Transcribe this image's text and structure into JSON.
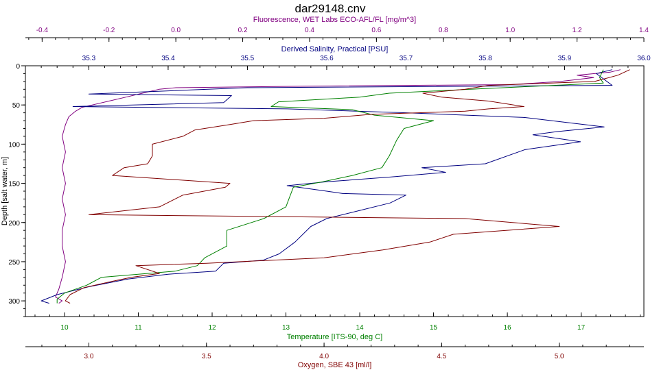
{
  "window_title": "dar29148.cnv",
  "chart_data": {
    "type": "line",
    "title": "dar29148.cnv",
    "y_axis": {
      "label": "Depth [salt water, m]",
      "range": [
        0,
        320
      ],
      "ticks": [
        0,
        50,
        100,
        150,
        200,
        250,
        300
      ],
      "inverted": true
    },
    "x_axes": [
      {
        "id": "fluorescence",
        "label": "Fluorescence, WET Labs ECO-AFL/FL [mg/m^3]",
        "position": "top-1",
        "range": [
          -0.45,
          1.4
        ],
        "ticks": [
          -0.4,
          -0.2,
          0.0,
          0.2,
          0.4,
          0.6,
          0.8,
          1.0,
          1.2,
          1.4
        ],
        "tick_labels": [
          "-0.4",
          "-0.2",
          "0.0",
          "0.2",
          "0.4",
          "0.6",
          "0.8",
          "1.0",
          "1.2",
          "1.4"
        ],
        "color": "#800080"
      },
      {
        "id": "salinity",
        "label": "Derived Salinity, Practical [PSU]",
        "position": "top-2",
        "range": [
          35.22,
          36.0
        ],
        "ticks": [
          35.3,
          35.4,
          35.5,
          35.6,
          35.7,
          35.8,
          35.9,
          36.0
        ],
        "tick_labels": [
          "35.3",
          "35.4",
          "35.5",
          "35.6",
          "35.7",
          "35.8",
          "35.9",
          "36.0"
        ],
        "color": "#000080"
      },
      {
        "id": "temperature",
        "label": "Temperature [ITS-90, deg C]",
        "position": "bottom-1",
        "range": [
          9.47,
          17.85
        ],
        "ticks": [
          10,
          11,
          12,
          13,
          14,
          15,
          16,
          17
        ],
        "tick_labels": [
          "10",
          "11",
          "12",
          "13",
          "14",
          "15",
          "16",
          "17"
        ],
        "color": "#008000"
      },
      {
        "id": "oxygen",
        "label": "Oxygen, SBE 43 [ml/l]",
        "position": "bottom-2",
        "range": [
          2.73,
          5.36
        ],
        "ticks": [
          3.0,
          3.5,
          4.0,
          4.5,
          5.0
        ],
        "tick_labels": [
          "3.0",
          "3.5",
          "4.0",
          "4.5",
          "5.0"
        ],
        "color": "#800000"
      }
    ],
    "grid": false,
    "series": [
      {
        "name": "Fluorescence, WET Labs ECO-AFL/FL [mg/m^3]",
        "axis": "fluorescence",
        "color": "#800080",
        "points": [
          [
            1.33,
            5
          ],
          [
            1.3,
            8
          ],
          [
            1.2,
            12
          ],
          [
            1.25,
            15
          ],
          [
            1.15,
            20
          ],
          [
            1.0,
            24
          ],
          [
            0.4,
            26
          ],
          [
            0.0,
            28
          ],
          [
            -0.05,
            30
          ],
          [
            -0.1,
            35
          ],
          [
            -0.15,
            40
          ],
          [
            -0.2,
            45
          ],
          [
            -0.25,
            50
          ],
          [
            -0.28,
            53
          ],
          [
            -0.3,
            58
          ],
          [
            -0.32,
            65
          ],
          [
            -0.33,
            75
          ],
          [
            -0.34,
            90
          ],
          [
            -0.33,
            110
          ],
          [
            -0.34,
            130
          ],
          [
            -0.33,
            150
          ],
          [
            -0.34,
            170
          ],
          [
            -0.33,
            190
          ],
          [
            -0.34,
            210
          ],
          [
            -0.34,
            230
          ],
          [
            -0.33,
            250
          ],
          [
            -0.34,
            270
          ],
          [
            -0.35,
            285
          ],
          [
            -0.36,
            295
          ],
          [
            -0.34,
            300
          ],
          [
            -0.35,
            303
          ]
        ]
      },
      {
        "name": "Derived Salinity, Practical [PSU]",
        "axis": "salinity",
        "color": "#000080",
        "points": [
          [
            35.96,
            5
          ],
          [
            35.94,
            10
          ],
          [
            35.96,
            25
          ],
          [
            35.5,
            28
          ],
          [
            35.45,
            30
          ],
          [
            35.3,
            36
          ],
          [
            35.48,
            38
          ],
          [
            35.47,
            47
          ],
          [
            35.28,
            52
          ],
          [
            35.55,
            55
          ],
          [
            35.7,
            60
          ],
          [
            35.85,
            66
          ],
          [
            35.95,
            78
          ],
          [
            35.89,
            84
          ],
          [
            35.86,
            88
          ],
          [
            35.92,
            97
          ],
          [
            35.85,
            107
          ],
          [
            35.8,
            125
          ],
          [
            35.72,
            130
          ],
          [
            35.75,
            136
          ],
          [
            35.68,
            142
          ],
          [
            35.6,
            148
          ],
          [
            35.55,
            153
          ],
          [
            35.6,
            160
          ],
          [
            35.62,
            163
          ],
          [
            35.7,
            165
          ],
          [
            35.68,
            175
          ],
          [
            35.64,
            185
          ],
          [
            35.6,
            195
          ],
          [
            35.58,
            205
          ],
          [
            35.56,
            225
          ],
          [
            35.54,
            240
          ],
          [
            35.52,
            248
          ],
          [
            35.47,
            252
          ],
          [
            35.46,
            262
          ],
          [
            35.4,
            266
          ],
          [
            35.35,
            272
          ],
          [
            35.3,
            282
          ],
          [
            35.26,
            292
          ],
          [
            35.24,
            300
          ],
          [
            35.25,
            303
          ]
        ]
      },
      {
        "name": "Temperature [ITS-90, deg C]",
        "axis": "temperature",
        "color": "#008000",
        "points": [
          [
            17.3,
            5
          ],
          [
            17.25,
            15
          ],
          [
            17.3,
            22
          ],
          [
            16.4,
            26
          ],
          [
            15.5,
            30
          ],
          [
            14.4,
            35
          ],
          [
            14.0,
            40
          ],
          [
            12.9,
            46
          ],
          [
            12.8,
            52
          ],
          [
            13.9,
            56
          ],
          [
            14.2,
            63
          ],
          [
            15.0,
            70
          ],
          [
            14.6,
            80
          ],
          [
            14.5,
            95
          ],
          [
            14.4,
            115
          ],
          [
            14.3,
            130
          ],
          [
            13.9,
            140
          ],
          [
            13.5,
            148
          ],
          [
            13.1,
            155
          ],
          [
            13.0,
            180
          ],
          [
            12.7,
            195
          ],
          [
            12.2,
            210
          ],
          [
            12.2,
            230
          ],
          [
            11.9,
            245
          ],
          [
            11.8,
            255
          ],
          [
            11.5,
            262
          ],
          [
            10.5,
            270
          ],
          [
            10.3,
            280
          ],
          [
            10.0,
            290
          ],
          [
            9.9,
            298
          ],
          [
            9.9,
            303
          ]
        ]
      },
      {
        "name": "Oxygen, SBE 43 [ml/l]",
        "axis": "oxygen",
        "color": "#800000",
        "points": [
          [
            5.3,
            5
          ],
          [
            5.25,
            12
          ],
          [
            5.15,
            20
          ],
          [
            4.7,
            25
          ],
          [
            4.6,
            30
          ],
          [
            4.42,
            35
          ],
          [
            4.5,
            40
          ],
          [
            4.7,
            45
          ],
          [
            4.85,
            52
          ],
          [
            4.7,
            55
          ],
          [
            4.6,
            58
          ],
          [
            4.2,
            62
          ],
          [
            4.0,
            67
          ],
          [
            3.7,
            70
          ],
          [
            3.6,
            75
          ],
          [
            3.45,
            82
          ],
          [
            3.4,
            90
          ],
          [
            3.27,
            100
          ],
          [
            3.27,
            115
          ],
          [
            3.25,
            125
          ],
          [
            3.15,
            130
          ],
          [
            3.1,
            140
          ],
          [
            3.6,
            150
          ],
          [
            3.58,
            155
          ],
          [
            3.4,
            165
          ],
          [
            3.3,
            180
          ],
          [
            3.0,
            190
          ],
          [
            4.6,
            195
          ],
          [
            5.0,
            205
          ],
          [
            4.55,
            215
          ],
          [
            4.45,
            225
          ],
          [
            4.25,
            235
          ],
          [
            4.0,
            245
          ],
          [
            3.5,
            252
          ],
          [
            3.2,
            255
          ],
          [
            3.3,
            265
          ],
          [
            3.18,
            270
          ],
          [
            3.1,
            275
          ],
          [
            2.98,
            283
          ],
          [
            2.92,
            292
          ],
          [
            2.9,
            300
          ],
          [
            2.92,
            303
          ]
        ]
      }
    ]
  }
}
